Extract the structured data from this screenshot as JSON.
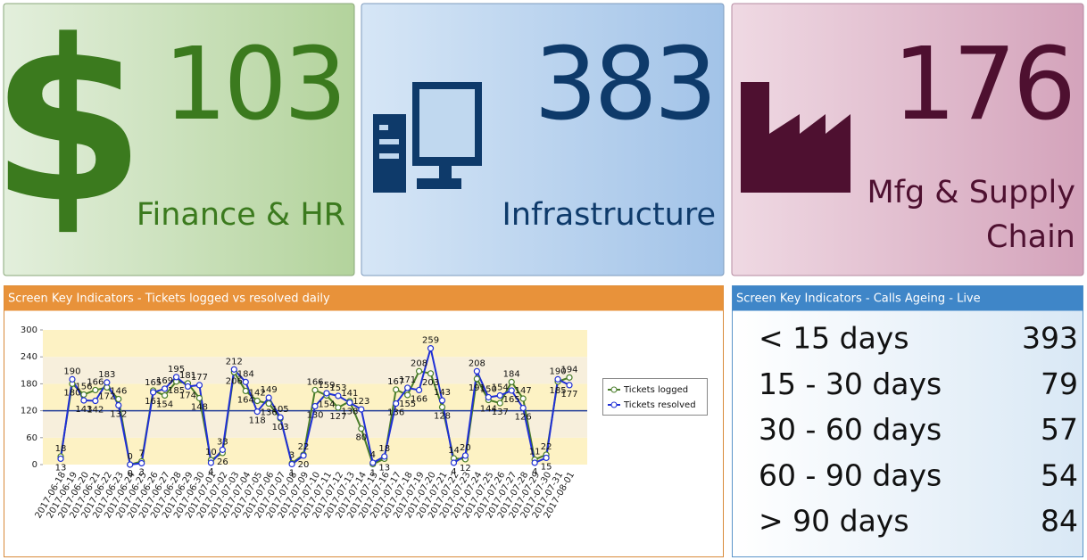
{
  "tiles": [
    {
      "icon": "$",
      "value": "103",
      "label": "Finance & HR"
    },
    {
      "value": "383",
      "label": "Infrastructure"
    },
    {
      "value": "176",
      "label_lines": [
        "Mfg & Supply",
        "Chain"
      ]
    }
  ],
  "chart_panel": {
    "title": "Screen Key Indicators - Tickets logged vs resolved daily"
  },
  "chart_data": {
    "type": "line",
    "categories": [
      "2017-06-18",
      "2017-06-19",
      "2017-06-20",
      "2017-06-21",
      "2017-06-22",
      "2017-06-23",
      "2017-06-24",
      "2017-06-25",
      "2017-06-26",
      "2017-06-27",
      "2017-06-28",
      "2017-06-29",
      "2017-06-30",
      "2017-07-01",
      "2017-07-02",
      "2017-07-03",
      "2017-07-04",
      "2017-07-05",
      "2017-07-06",
      "2017-07-07",
      "2017-07-08",
      "2017-07-09",
      "2017-07-10",
      "2017-07-11",
      "2017-07-12",
      "2017-07-13",
      "2017-07-14",
      "2017-07-15",
      "2017-07-16",
      "2017-07-17",
      "2017-07-18",
      "2017-07-19",
      "2017-07-20",
      "2017-07-21",
      "2017-07-22",
      "2017-07-23",
      "2017-07-24",
      "2017-07-25",
      "2017-07-26",
      "2017-07-27",
      "2017-07-28",
      "2017-07-29",
      "2017-07-30",
      "2017-07-31",
      "2017-08-01"
    ],
    "series": [
      {
        "name": "Tickets logged",
        "color": "#4a7d2a",
        "values": [
          18,
          180,
          156,
          166,
          172,
          146,
          0,
          7,
          165,
          154,
          185,
          181,
          148,
          10,
          26,
          206,
          164,
          142,
          136,
          103,
          3,
          22,
          166,
          154,
          127,
          141,
          80,
          1,
          13,
          167,
          155,
          208,
          203,
          128,
          14,
          12,
          191,
          144,
          137,
          184,
          147,
          11,
          22,
          185,
          194
        ]
      },
      {
        "name": "Tickets resolved",
        "color": "#1f2fd6",
        "values": [
          13,
          190,
          143,
          142,
          183,
          132,
          0,
          3,
          161,
          169,
          195,
          174,
          177,
          4,
          33,
          212,
          184,
          118,
          149,
          105,
          1,
          20,
          130,
          159,
          153,
          138,
          123,
          4,
          18,
          136,
          171,
          166,
          259,
          143,
          4,
          20,
          208,
          150,
          154,
          165,
          126,
          4,
          15,
          190,
          177
        ]
      }
    ],
    "reference_line": 120,
    "ylim": [
      0,
      300
    ],
    "yticks": [
      0,
      60,
      120,
      180,
      240,
      300
    ],
    "legend": "right"
  },
  "ageing": {
    "title": "Screen Key Indicators - Calls Ageing - Live",
    "rows": [
      [
        "< 15 days",
        "393"
      ],
      [
        "15 - 30 days",
        "79"
      ],
      [
        "30 - 60 days",
        "57"
      ],
      [
        "60 - 90 days",
        "54"
      ],
      [
        "> 90 days",
        "84"
      ]
    ]
  }
}
